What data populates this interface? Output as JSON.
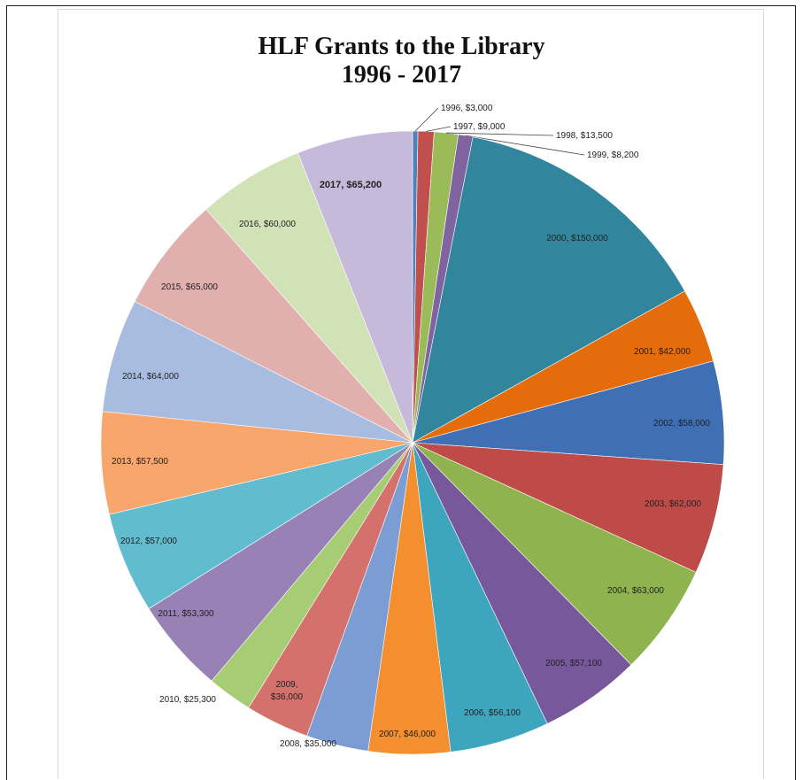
{
  "chart_data": {
    "type": "pie",
    "title": "HLF Grants to the Library",
    "subtitle": "1996 - 2017",
    "slices": [
      {
        "label": "1996, $3,000",
        "year": 1996,
        "value": 3000,
        "color": "#4f81bd"
      },
      {
        "label": "1997, $9,000",
        "year": 1997,
        "value": 9000,
        "color": "#c0504d"
      },
      {
        "label": "1998, $13,500",
        "year": 1998,
        "value": 13500,
        "color": "#9bbb59"
      },
      {
        "label": "1999, $8,200",
        "year": 1999,
        "value": 8200,
        "color": "#8064a2"
      },
      {
        "label": "2000, $150,000",
        "year": 2000,
        "value": 150000,
        "color": "#31859c"
      },
      {
        "label": "2001, $42,000",
        "year": 2001,
        "value": 42000,
        "color": "#e46c0a"
      },
      {
        "label": "2002, $58,000",
        "year": 2002,
        "value": 58000,
        "color": "#3f6fb4"
      },
      {
        "label": "2003, $62,000",
        "year": 2003,
        "value": 62000,
        "color": "#be4b48"
      },
      {
        "label": "2004, $63,000",
        "year": 2004,
        "value": 63000,
        "color": "#8fb34e"
      },
      {
        "label": "2005, $57,100",
        "year": 2005,
        "value": 57100,
        "color": "#77589a"
      },
      {
        "label": "2006, $56,100",
        "year": 2006,
        "value": 56100,
        "color": "#3ea5bf"
      },
      {
        "label": "2007, $46,000",
        "year": 2007,
        "value": 46000,
        "color": "#f38f2f"
      },
      {
        "label": "2008, $35,000",
        "year": 2008,
        "value": 35000,
        "color": "#7b9dd4"
      },
      {
        "label": "2009, $36,000",
        "year": 2009,
        "value": 36000,
        "color": "#d5716d"
      },
      {
        "label": "2010, $25,300",
        "year": 2010,
        "value": 25300,
        "color": "#a6cc74"
      },
      {
        "label": "2011, $53,300",
        "year": 2011,
        "value": 53300,
        "color": "#9881b5"
      },
      {
        "label": "2012, $57,000",
        "year": 2012,
        "value": 57000,
        "color": "#61bccf"
      },
      {
        "label": "2013, $57,500",
        "year": 2013,
        "value": 57500,
        "color": "#f8a66b"
      },
      {
        "label": "2014, $64,000",
        "year": 2014,
        "value": 64000,
        "color": "#a8bcdf"
      },
      {
        "label": "2015, $65,000",
        "year": 2015,
        "value": 65000,
        "color": "#e1b0ae"
      },
      {
        "label": "2016,  $60,000",
        "year": 2016,
        "value": 60000,
        "color": "#d1e2b7"
      },
      {
        "label": "2017, $65,200",
        "year": 2017,
        "value": 65200,
        "color": "#c7b9d9"
      }
    ]
  }
}
